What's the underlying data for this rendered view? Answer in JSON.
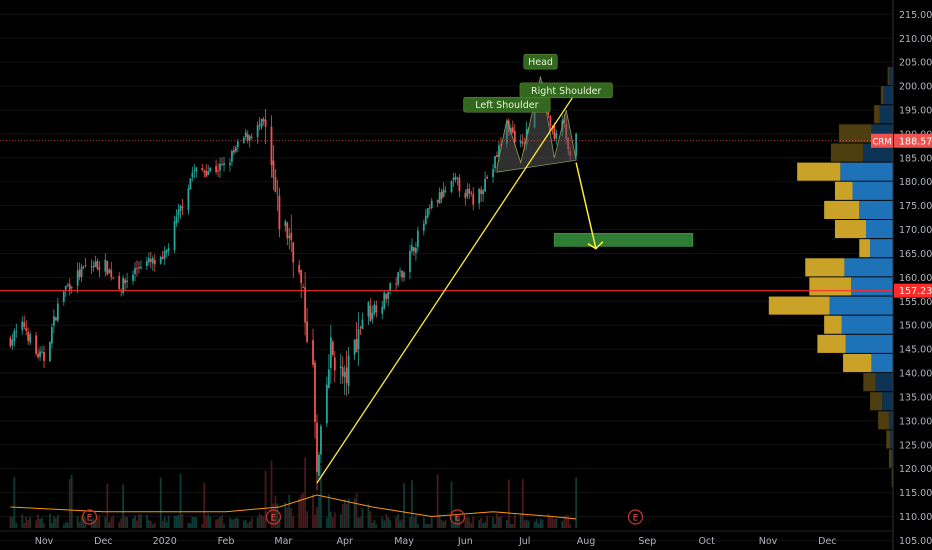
{
  "chart_data": {
    "type": "candlestick",
    "ticker": "CRM",
    "last_price": 188.57,
    "level_line": 157.23,
    "ylim": [
      103,
      218
    ],
    "y_ticks": [
      105,
      110,
      115,
      120,
      125,
      130,
      135,
      140,
      145,
      150,
      155,
      160,
      165,
      170,
      175,
      180,
      185,
      190,
      195,
      200,
      205,
      210,
      215
    ],
    "x_ticks": [
      "Nov",
      "Dec",
      "2020",
      "Feb",
      "Mar",
      "Apr",
      "May",
      "Jun",
      "Jul",
      "Aug",
      "Sep",
      "Oct",
      "Nov",
      "Dec"
    ],
    "price_path": [
      {
        "date": "2019-10-15",
        "price": 147
      },
      {
        "date": "2019-10-22",
        "price": 150
      },
      {
        "date": "2019-10-28",
        "price": 144
      },
      {
        "date": "2019-11-01",
        "price": 143
      },
      {
        "date": "2019-11-10",
        "price": 157
      },
      {
        "date": "2019-11-22",
        "price": 162
      },
      {
        "date": "2019-12-01",
        "price": 163
      },
      {
        "date": "2019-12-10",
        "price": 158
      },
      {
        "date": "2019-12-20",
        "price": 163
      },
      {
        "date": "2019-12-31",
        "price": 163
      },
      {
        "date": "2020-01-15",
        "price": 182
      },
      {
        "date": "2020-01-31",
        "price": 183
      },
      {
        "date": "2020-02-10",
        "price": 189
      },
      {
        "date": "2020-02-20",
        "price": 192
      },
      {
        "date": "2020-02-28",
        "price": 172
      },
      {
        "date": "2020-03-05",
        "price": 168
      },
      {
        "date": "2020-03-10",
        "price": 158
      },
      {
        "date": "2020-03-16",
        "price": 140
      },
      {
        "date": "2020-03-18",
        "price": 118
      },
      {
        "date": "2020-03-25",
        "price": 145
      },
      {
        "date": "2020-04-01",
        "price": 138
      },
      {
        "date": "2020-04-10",
        "price": 152
      },
      {
        "date": "2020-04-20",
        "price": 155
      },
      {
        "date": "2020-05-01",
        "price": 162
      },
      {
        "date": "2020-05-15",
        "price": 175
      },
      {
        "date": "2020-05-27",
        "price": 180
      },
      {
        "date": "2020-06-05",
        "price": 176
      },
      {
        "date": "2020-06-15",
        "price": 183
      },
      {
        "date": "2020-06-22",
        "price": 192
      },
      {
        "date": "2020-06-30",
        "price": 187
      },
      {
        "date": "2020-07-07",
        "price": 198
      },
      {
        "date": "2020-07-10",
        "price": 200
      },
      {
        "date": "2020-07-16",
        "price": 188
      },
      {
        "date": "2020-07-20",
        "price": 194
      },
      {
        "date": "2020-07-23",
        "price": 186
      },
      {
        "date": "2020-07-27",
        "price": 189
      }
    ],
    "volume_overlay": [
      {
        "date": "2019-10-15",
        "value": 112
      },
      {
        "date": "2019-12-01",
        "value": 111
      },
      {
        "date": "2020-02-01",
        "value": 111
      },
      {
        "date": "2020-02-28",
        "value": 112
      },
      {
        "date": "2020-03-18",
        "value": 114.5
      },
      {
        "date": "2020-04-15",
        "value": 112
      },
      {
        "date": "2020-05-15",
        "value": 110
      },
      {
        "date": "2020-06-15",
        "value": 111
      },
      {
        "date": "2020-07-15",
        "value": 110
      },
      {
        "date": "2020-07-27",
        "value": 109.5
      }
    ],
    "trendline": {
      "from": {
        "date": "2020-03-18",
        "price": 117
      },
      "to": {
        "date": "2020-07-29",
        "price": 200
      }
    },
    "target_arrow": {
      "from": {
        "date": "2020-07-27",
        "price": 184
      },
      "to": {
        "date": "2020-08-06",
        "price": 166
      }
    },
    "target_zone": {
      "from_date": "2020-07-16",
      "to_date": "2020-09-24",
      "low": 166.5,
      "high": 169.2
    },
    "pattern_labels": [
      {
        "text": "Left Shoulder",
        "date": "2020-06-22",
        "price": 196
      },
      {
        "text": "Head",
        "date": "2020-07-09",
        "price": 205
      },
      {
        "text": "Right Shoulder",
        "date": "2020-07-22",
        "price": 199
      }
    ],
    "earnings_markers": {
      "label": "E",
      "dates": [
        "2019-11-24",
        "2020-02-25",
        "2020-05-28",
        "2020-08-26"
      ]
    },
    "volume_profile": [
      {
        "price": 202,
        "buy": 0.3,
        "sell": 0.1
      },
      {
        "price": 198,
        "buy": 0.7,
        "sell": 0.2
      },
      {
        "price": 194,
        "buy": 1.0,
        "sell": 0.4
      },
      {
        "price": 190,
        "buy": 1.6,
        "sell": 2.4
      },
      {
        "price": 186,
        "buy": 2.2,
        "sell": 2.4
      },
      {
        "price": 182,
        "buy": 3.9,
        "sell": 3.2
      },
      {
        "price": 178,
        "buy": 3.0,
        "sell": 1.3
      },
      {
        "price": 174,
        "buy": 2.5,
        "sell": 2.6
      },
      {
        "price": 170,
        "buy": 2.0,
        "sell": 2.3
      },
      {
        "price": 166,
        "buy": 1.7,
        "sell": 0.8
      },
      {
        "price": 162,
        "buy": 3.6,
        "sell": 2.9
      },
      {
        "price": 158,
        "buy": 3.1,
        "sell": 3.1
      },
      {
        "price": 154,
        "buy": 4.7,
        "sell": 4.5
      },
      {
        "price": 150,
        "buy": 3.8,
        "sell": 1.3
      },
      {
        "price": 146,
        "buy": 3.5,
        "sell": 2.1
      },
      {
        "price": 142,
        "buy": 1.6,
        "sell": 2.1
      },
      {
        "price": 138,
        "buy": 1.3,
        "sell": 0.9
      },
      {
        "price": 134,
        "buy": 0.8,
        "sell": 0.9
      },
      {
        "price": 130,
        "buy": 0.3,
        "sell": 0.8
      },
      {
        "price": 126,
        "buy": 0.2,
        "sell": 0.3
      },
      {
        "price": 122,
        "buy": 0.1,
        "sell": 0.2
      },
      {
        "price": 118,
        "buy": 0.0,
        "sell": 0.1
      }
    ],
    "colors": {
      "up": "#26a69a",
      "down": "#ef5350",
      "last_price_line": "#ef5350",
      "level_line": "#ff2a2a",
      "trendline": "#ffeb3b",
      "arrow": "#ffeb3b",
      "target_zone": "#2e7d32",
      "pattern_fill": "#3a3a3a",
      "label_bg": "#33691e",
      "volume_overlay": "#ff9800",
      "profile_buy": "#1e72b8",
      "profile_sell": "#c9a227",
      "profile_buy_dark": "#0e3455",
      "profile_sell_dark": "#4f3e10"
    }
  }
}
